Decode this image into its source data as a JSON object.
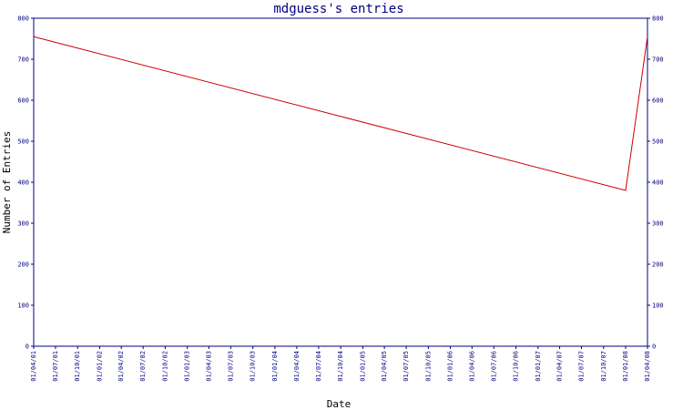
{
  "chart_data": {
    "type": "line",
    "title": "mdguess's entries",
    "xlabel": "Date",
    "ylabel": "Number of Entries",
    "ylim": [
      0,
      800
    ],
    "yticks": [
      0,
      100,
      200,
      300,
      400,
      500,
      600,
      700,
      800
    ],
    "x_tick_labels": [
      "01/04/01",
      "01/07/01",
      "01/10/01",
      "01/01/02",
      "01/04/02",
      "01/07/02",
      "01/10/02",
      "01/01/03",
      "01/04/03",
      "01/07/03",
      "01/10/03",
      "01/01/04",
      "01/04/04",
      "01/07/04",
      "01/10/04",
      "01/01/05",
      "01/04/05",
      "01/07/05",
      "01/10/05",
      "01/01/06",
      "01/04/06",
      "01/07/06",
      "01/10/06",
      "01/01/07",
      "01/04/07",
      "01/07/07",
      "01/10/07",
      "01/01/08",
      "01/04/08"
    ],
    "series": [
      {
        "color": "#cc0000",
        "points": [
          {
            "x": "2001-04-01",
            "y": 755
          },
          {
            "x": "2008-01-01",
            "y": 380
          },
          {
            "x": "2008-04-01",
            "y": 755
          }
        ]
      }
    ],
    "grid": false,
    "colors": {
      "axis": "#000080",
      "line": "#cc0000",
      "title": "#000080"
    }
  }
}
